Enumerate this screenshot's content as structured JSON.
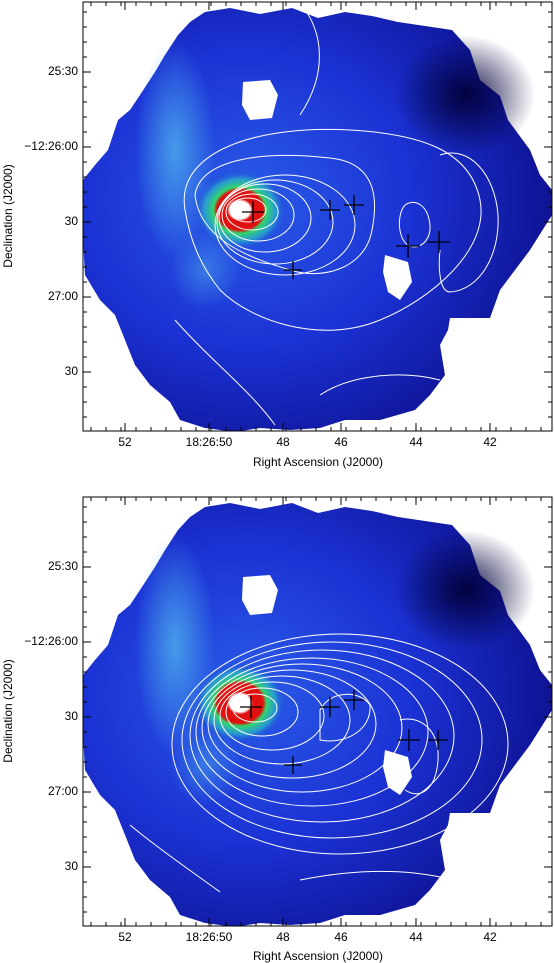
{
  "panels": [
    {
      "id": "top",
      "xlabel": "Right Ascension (J2000)",
      "ylabel": "Declination (J2000)",
      "xticks": [
        "52",
        "18:26:50",
        "48",
        "46",
        "44",
        "42"
      ],
      "yticks": [
        "25:30",
        "−12:26:00",
        "30",
        "27:00",
        "30"
      ]
    },
    {
      "id": "bottom",
      "xlabel": "Right Ascension (J2000)",
      "ylabel": "Declination (J2000)",
      "xticks": [
        "52",
        "18:26:50",
        "48",
        "46",
        "44",
        "42"
      ],
      "yticks": [
        "25:30",
        "−12:26:00",
        "30",
        "27:00",
        "30"
      ]
    }
  ],
  "colors": {
    "map_dark": "#05005a",
    "map_mid": "#1a2fd8",
    "map_light": "#3f9be6",
    "peak_green": "#31d66a",
    "peak_red": "#e01010",
    "peak_white": "#ffffff",
    "contour": "#ffffff",
    "marker": "#000000"
  },
  "markers": [
    "plus",
    "plus",
    "plus",
    "plus",
    "plus",
    "plus"
  ]
}
